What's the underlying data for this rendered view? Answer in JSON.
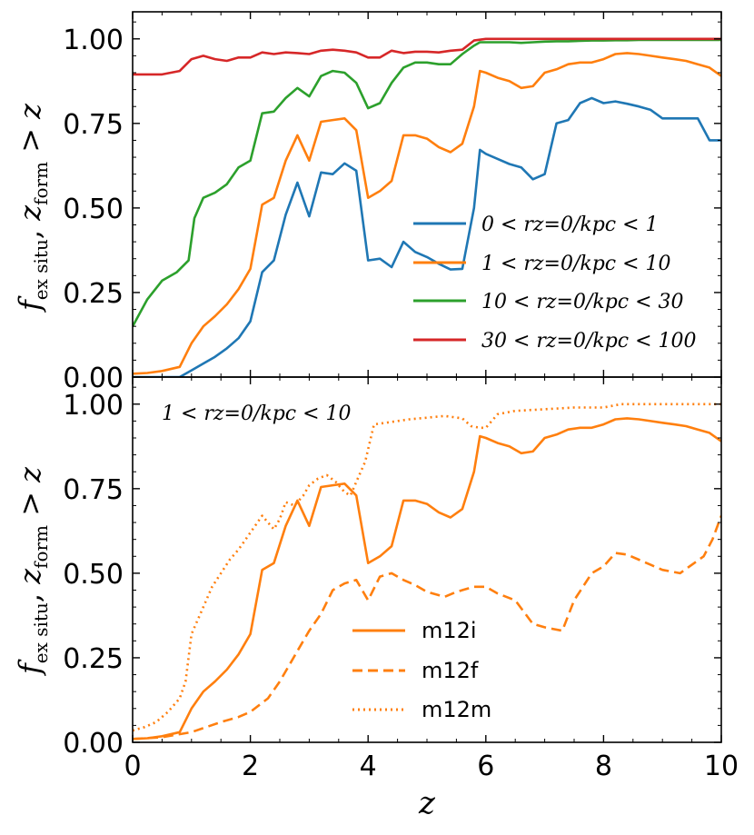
{
  "chart_data": [
    {
      "type": "line",
      "panel": "top",
      "title": "",
      "xlabel": "z",
      "ylabel": "f_ex situ, z_form > z",
      "xlim": [
        0,
        10
      ],
      "ylim": [
        0,
        1.08
      ],
      "x_ticks": [
        "0",
        "2",
        "4",
        "6",
        "8",
        "10"
      ],
      "y_ticks": [
        "0.00",
        "0.25",
        "0.50",
        "0.75",
        "1.00"
      ],
      "y_tick_values": [
        0,
        0.25,
        0.5,
        0.75,
        1.0
      ],
      "legend_position": "center-right",
      "series": [
        {
          "name": "0 < r_{z=0}/kpc < 1",
          "label": "0 < rz=0/kpc < 1",
          "color": "#1f77b4",
          "dash": "solid",
          "x": [
            0,
            0.25,
            0.5,
            0.8,
            1.0,
            1.2,
            1.4,
            1.6,
            1.8,
            2.0,
            2.2,
            2.4,
            2.6,
            2.8,
            3.0,
            3.2,
            3.4,
            3.6,
            3.8,
            4.0,
            4.2,
            4.4,
            4.6,
            4.8,
            5.0,
            5.2,
            5.4,
            5.6,
            5.8,
            5.9,
            6.0,
            6.2,
            6.4,
            6.6,
            6.8,
            7.0,
            7.2,
            7.4,
            7.6,
            7.8,
            8.0,
            8.2,
            8.4,
            8.6,
            8.8,
            9.0,
            9.2,
            9.4,
            9.6,
            9.8,
            10.0
          ],
          "y": [
            0,
            0,
            0,
            0,
            0.02,
            0.04,
            0.06,
            0.085,
            0.115,
            0.165,
            0.31,
            0.345,
            0.48,
            0.575,
            0.475,
            0.605,
            0.6,
            0.632,
            0.61,
            0.345,
            0.35,
            0.325,
            0.4,
            0.37,
            0.355,
            0.335,
            0.318,
            0.32,
            0.5,
            0.672,
            0.66,
            0.645,
            0.63,
            0.62,
            0.585,
            0.6,
            0.75,
            0.76,
            0.81,
            0.825,
            0.81,
            0.815,
            0.808,
            0.8,
            0.79,
            0.765,
            0.765,
            0.765,
            0.765,
            0.7,
            0.7
          ]
        },
        {
          "name": "1 < r_{z=0}/kpc < 10",
          "label": "1 < rz=0/kpc < 10",
          "color": "#ff7f0e",
          "dash": "solid",
          "x": [
            0,
            0.25,
            0.5,
            0.8,
            1.0,
            1.2,
            1.4,
            1.6,
            1.8,
            2.0,
            2.2,
            2.4,
            2.6,
            2.8,
            3.0,
            3.2,
            3.4,
            3.6,
            3.8,
            4.0,
            4.2,
            4.4,
            4.6,
            4.8,
            5.0,
            5.2,
            5.4,
            5.6,
            5.8,
            5.9,
            6.0,
            6.2,
            6.4,
            6.6,
            6.8,
            7.0,
            7.2,
            7.4,
            7.6,
            7.8,
            8.0,
            8.2,
            8.4,
            8.6,
            8.8,
            9.0,
            9.2,
            9.4,
            9.6,
            9.8,
            10.0
          ],
          "y": [
            0.01,
            0.012,
            0.018,
            0.03,
            0.1,
            0.15,
            0.18,
            0.215,
            0.26,
            0.32,
            0.51,
            0.53,
            0.64,
            0.715,
            0.64,
            0.755,
            0.76,
            0.765,
            0.73,
            0.53,
            0.55,
            0.58,
            0.715,
            0.715,
            0.705,
            0.68,
            0.665,
            0.69,
            0.8,
            0.905,
            0.9,
            0.885,
            0.875,
            0.855,
            0.86,
            0.9,
            0.91,
            0.925,
            0.93,
            0.93,
            0.94,
            0.955,
            0.958,
            0.955,
            0.95,
            0.945,
            0.94,
            0.935,
            0.925,
            0.915,
            0.89
          ]
        },
        {
          "name": "10 < r_{z=0}/kpc < 30",
          "label": "10 < rz=0/kpc < 30",
          "color": "#2ca02c",
          "dash": "solid",
          "x": [
            0,
            0.25,
            0.5,
            0.75,
            0.95,
            1.05,
            1.2,
            1.4,
            1.6,
            1.8,
            2.0,
            2.2,
            2.4,
            2.6,
            2.8,
            3.0,
            3.2,
            3.4,
            3.6,
            3.8,
            4.0,
            4.2,
            4.4,
            4.6,
            4.8,
            5.0,
            5.2,
            5.4,
            5.6,
            5.8,
            5.9,
            6.0,
            6.2,
            6.4,
            6.6,
            6.8,
            7.0,
            7.2,
            7.4,
            7.6,
            7.8,
            8.0,
            8.2,
            8.4,
            8.6,
            8.8,
            9.0,
            9.2,
            9.4,
            9.6,
            9.8,
            10.0
          ],
          "y": [
            0.15,
            0.23,
            0.285,
            0.31,
            0.345,
            0.47,
            0.53,
            0.545,
            0.57,
            0.62,
            0.64,
            0.78,
            0.785,
            0.825,
            0.855,
            0.83,
            0.89,
            0.905,
            0.9,
            0.87,
            0.795,
            0.81,
            0.87,
            0.915,
            0.93,
            0.93,
            0.925,
            0.925,
            0.955,
            0.98,
            0.99,
            0.99,
            0.99,
            0.99,
            0.988,
            0.99,
            0.992,
            0.993,
            0.993,
            0.994,
            0.995,
            0.995,
            0.996,
            0.996,
            0.997,
            0.997,
            0.997,
            0.997,
            0.997,
            0.997,
            0.997,
            0.997
          ]
        },
        {
          "name": "30 < r_{z=0}/kpc < 100",
          "label": "30 < rz=0/kpc < 100",
          "color": "#d62728",
          "dash": "solid",
          "x": [
            0,
            0.25,
            0.5,
            0.8,
            1.0,
            1.2,
            1.4,
            1.6,
            1.8,
            2.0,
            2.2,
            2.4,
            2.6,
            2.8,
            3.0,
            3.2,
            3.4,
            3.6,
            3.8,
            4.0,
            4.2,
            4.4,
            4.6,
            4.8,
            5.0,
            5.2,
            5.4,
            5.6,
            5.8,
            6.0,
            6.2,
            6.4,
            6.6,
            6.8,
            7.0,
            7.5,
            8.0,
            8.5,
            9.0,
            9.5,
            10.0
          ],
          "y": [
            0.895,
            0.895,
            0.895,
            0.905,
            0.94,
            0.95,
            0.94,
            0.935,
            0.945,
            0.945,
            0.96,
            0.955,
            0.96,
            0.958,
            0.955,
            0.965,
            0.968,
            0.965,
            0.96,
            0.945,
            0.945,
            0.965,
            0.958,
            0.962,
            0.962,
            0.96,
            0.965,
            0.968,
            0.995,
            1.0,
            1.0,
            1.0,
            1.0,
            1.0,
            1.0,
            1.0,
            1.0,
            1.0,
            1.0,
            1.0,
            1.0
          ]
        }
      ]
    },
    {
      "type": "line",
      "panel": "bottom",
      "title": "",
      "annotation": "1 < rz=0/kpc < 10",
      "xlabel": "z",
      "ylabel": "f_ex situ, z_form > z",
      "xlim": [
        0,
        10
      ],
      "ylim": [
        0,
        1.08
      ],
      "x_ticks": [
        "0",
        "2",
        "4",
        "6",
        "8",
        "10"
      ],
      "y_ticks": [
        "0.00",
        "0.25",
        "0.50",
        "0.75",
        "1.00"
      ],
      "y_tick_values": [
        0,
        0.25,
        0.5,
        0.75,
        1.0
      ],
      "legend_position": "lower-center",
      "series": [
        {
          "name": "m12i",
          "label": "m12i",
          "color": "#ff7f0e",
          "dash": "solid",
          "x": [
            0,
            0.25,
            0.5,
            0.8,
            1.0,
            1.2,
            1.4,
            1.6,
            1.8,
            2.0,
            2.2,
            2.4,
            2.6,
            2.8,
            3.0,
            3.2,
            3.4,
            3.6,
            3.8,
            4.0,
            4.2,
            4.4,
            4.6,
            4.8,
            5.0,
            5.2,
            5.4,
            5.6,
            5.8,
            5.9,
            6.0,
            6.2,
            6.4,
            6.6,
            6.8,
            7.0,
            7.2,
            7.4,
            7.6,
            7.8,
            8.0,
            8.2,
            8.4,
            8.6,
            8.8,
            9.0,
            9.2,
            9.4,
            9.6,
            9.8,
            10.0
          ],
          "y": [
            0.01,
            0.012,
            0.018,
            0.03,
            0.1,
            0.15,
            0.18,
            0.215,
            0.26,
            0.32,
            0.51,
            0.53,
            0.64,
            0.715,
            0.64,
            0.755,
            0.76,
            0.765,
            0.73,
            0.53,
            0.55,
            0.58,
            0.715,
            0.715,
            0.705,
            0.68,
            0.665,
            0.69,
            0.8,
            0.905,
            0.9,
            0.885,
            0.875,
            0.855,
            0.86,
            0.9,
            0.91,
            0.925,
            0.93,
            0.93,
            0.94,
            0.955,
            0.958,
            0.955,
            0.95,
            0.945,
            0.94,
            0.935,
            0.925,
            0.915,
            0.89
          ]
        },
        {
          "name": "m12f",
          "label": "m12f",
          "color": "#ff7f0e",
          "dash": "dashed",
          "x": [
            0,
            0.5,
            1.0,
            1.5,
            1.8,
            2.0,
            2.3,
            2.5,
            2.8,
            3.0,
            3.2,
            3.4,
            3.6,
            3.8,
            4.0,
            4.2,
            4.4,
            4.6,
            4.8,
            5.0,
            5.3,
            5.5,
            5.8,
            6.0,
            6.2,
            6.5,
            6.8,
            7.0,
            7.3,
            7.5,
            7.8,
            8.0,
            8.2,
            8.4,
            8.6,
            8.8,
            9.0,
            9.3,
            9.5,
            9.7,
            9.85,
            10.0
          ],
          "y": [
            0.01,
            0.015,
            0.03,
            0.06,
            0.075,
            0.09,
            0.13,
            0.18,
            0.27,
            0.33,
            0.38,
            0.45,
            0.47,
            0.48,
            0.42,
            0.49,
            0.5,
            0.48,
            0.465,
            0.445,
            0.43,
            0.445,
            0.46,
            0.46,
            0.44,
            0.42,
            0.35,
            0.34,
            0.33,
            0.42,
            0.5,
            0.52,
            0.56,
            0.555,
            0.54,
            0.525,
            0.51,
            0.5,
            0.525,
            0.55,
            0.6,
            0.67
          ]
        },
        {
          "name": "m12m",
          "label": "m12m",
          "color": "#ff7f0e",
          "dash": "dotted",
          "x": [
            0,
            0.2,
            0.4,
            0.6,
            0.8,
            0.9,
            1.0,
            1.1,
            1.2,
            1.35,
            1.5,
            1.65,
            1.8,
            2.0,
            2.2,
            2.3,
            2.4,
            2.5,
            2.6,
            2.75,
            2.9,
            3.0,
            3.15,
            3.3,
            3.45,
            3.6,
            3.7,
            3.8,
            3.95,
            4.1,
            4.3,
            4.5,
            4.7,
            5.0,
            5.3,
            5.6,
            5.75,
            5.9,
            6.0,
            6.2,
            6.5,
            7.0,
            7.5,
            8.0,
            8.3,
            8.6,
            9.0,
            9.5,
            10.0
          ],
          "y": [
            0.035,
            0.045,
            0.06,
            0.09,
            0.13,
            0.18,
            0.32,
            0.36,
            0.4,
            0.46,
            0.5,
            0.54,
            0.57,
            0.62,
            0.67,
            0.65,
            0.63,
            0.66,
            0.71,
            0.7,
            0.73,
            0.76,
            0.78,
            0.79,
            0.77,
            0.74,
            0.73,
            0.77,
            0.83,
            0.94,
            0.945,
            0.95,
            0.955,
            0.96,
            0.965,
            0.958,
            0.935,
            0.93,
            0.93,
            0.97,
            0.98,
            0.985,
            0.99,
            0.99,
            1.0,
            1.0,
            1.0,
            1.0,
            1.0
          ]
        }
      ]
    }
  ]
}
